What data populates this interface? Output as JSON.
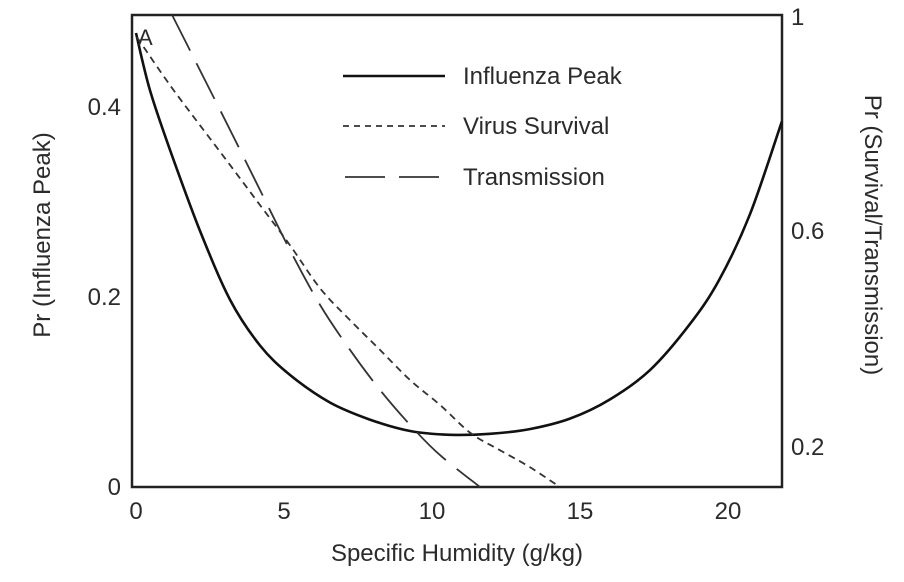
{
  "chart_data": {
    "type": "line",
    "panel_label": "A",
    "xlabel": "Specific Humidity (g/kg)",
    "ylabel_left": "Pr (Influenza Peak)",
    "ylabel_right": "Pr (Survival/Transmission)",
    "xlim": [
      0,
      21.95
    ],
    "ylim_left": [
      0,
      0.497
    ],
    "ylim_right": [
      0.126,
      1.0
    ],
    "x_ticks": [
      {
        "value": 0,
        "label": "0"
      },
      {
        "value": 5,
        "label": "5"
      },
      {
        "value": 10,
        "label": "10"
      },
      {
        "value": 15,
        "label": "15"
      },
      {
        "value": 20,
        "label": "20"
      }
    ],
    "y_left_ticks": [
      {
        "value": 0,
        "label": "0"
      },
      {
        "value": 0.2,
        "label": "0.2"
      },
      {
        "value": 0.4,
        "label": "0.4"
      }
    ],
    "y_right_ticks": [
      {
        "value": 0.2,
        "label": "0.2"
      },
      {
        "value": 0.6,
        "label": "0.6"
      },
      {
        "value": 1.0,
        "label": "1"
      }
    ],
    "grid": false,
    "legend_position": "top-center",
    "series": [
      {
        "name": "Influenza Peak",
        "axis": "left",
        "style": "solid",
        "color": "#111111",
        "x": [
          0,
          0.47,
          1.15,
          2.16,
          3.18,
          4.19,
          5.2,
          6.55,
          7.9,
          9.26,
          10.6,
          11.96,
          13.3,
          14.66,
          16.0,
          17.36,
          18.7,
          19.7,
          20.74,
          21.82
        ],
        "y": [
          0.478,
          0.418,
          0.355,
          0.27,
          0.197,
          0.149,
          0.118,
          0.089,
          0.071,
          0.059,
          0.055,
          0.056,
          0.061,
          0.072,
          0.092,
          0.123,
          0.171,
          0.218,
          0.287,
          0.385
        ]
      },
      {
        "name": "Virus Survival",
        "axis": "right",
        "style": "short-dash",
        "color": "#333333",
        "x": [
          0.03,
          1.15,
          2.16,
          3.18,
          4.19,
          5.2,
          6.22,
          7.23,
          8.24,
          9.26,
          10.27,
          11.3,
          12.3,
          13.3,
          14.32
        ],
        "y": [
          0.959,
          0.87,
          0.796,
          0.722,
          0.648,
          0.574,
          0.494,
          0.435,
          0.38,
          0.324,
          0.278,
          0.226,
          0.194,
          0.163,
          0.126
        ]
      },
      {
        "name": "Transmission",
        "axis": "right",
        "style": "long-dash",
        "color": "#333333",
        "x": [
          1.22,
          2.16,
          3.18,
          4.19,
          5.2,
          6.22,
          7.23,
          8.24,
          9.26,
          10.27,
          11.62
        ],
        "y": [
          1.0,
          0.898,
          0.787,
          0.676,
          0.565,
          0.463,
          0.38,
          0.306,
          0.241,
          0.185,
          0.126
        ]
      }
    ]
  }
}
